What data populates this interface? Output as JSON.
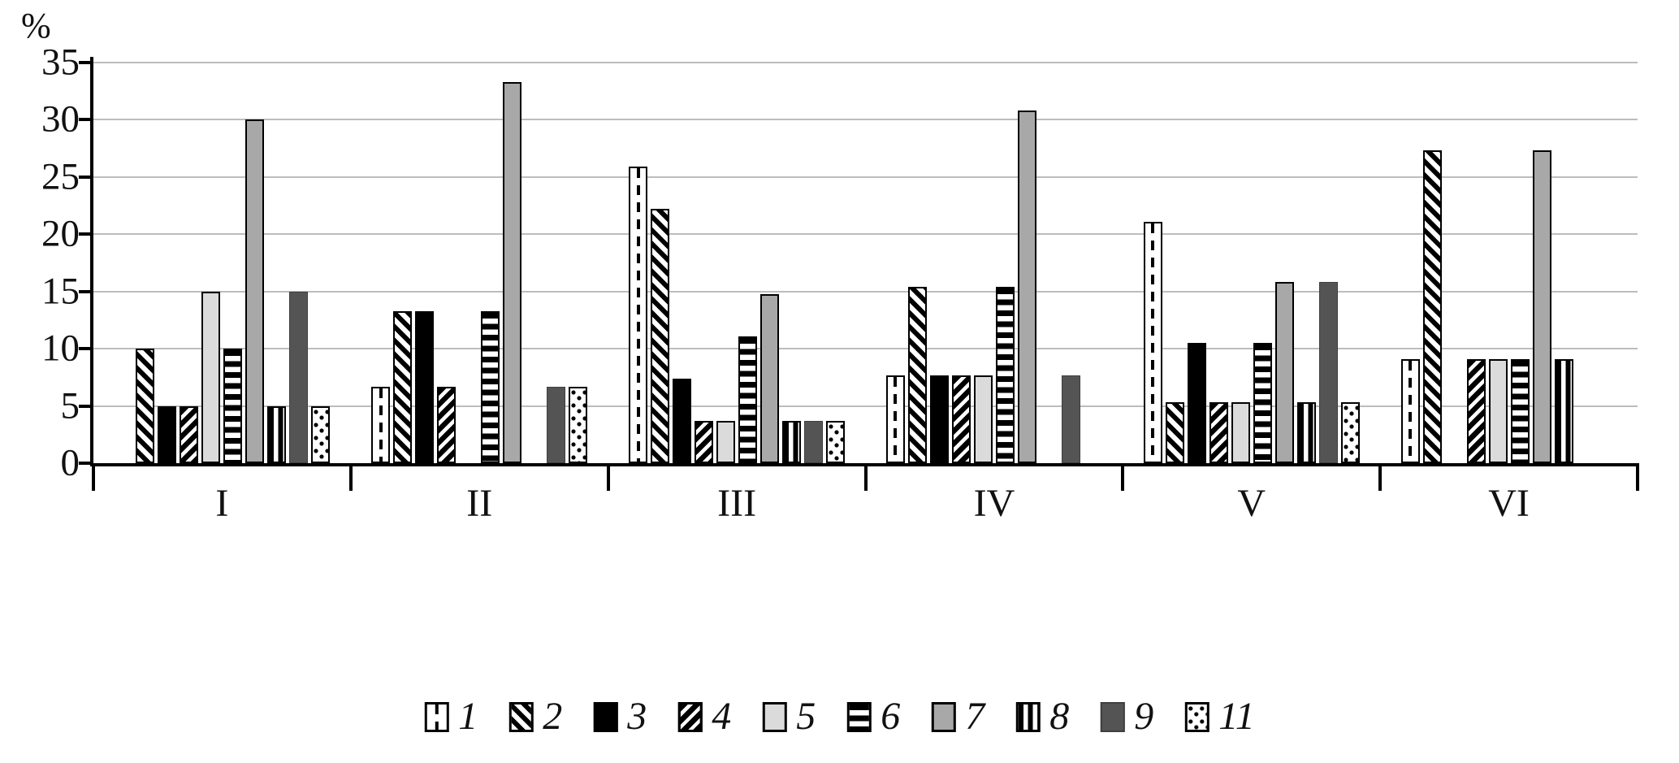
{
  "chart": {
    "percent_label": "%"
  },
  "chart_data": {
    "type": "bar",
    "title": "",
    "ylabel": "%",
    "xlabel": "",
    "ylim": [
      0,
      35
    ],
    "yticks": [
      35,
      30,
      25,
      20,
      15,
      10,
      5,
      0
    ],
    "grid": true,
    "legend_position": "bottom",
    "categories": [
      "I",
      "II",
      "III",
      "IV",
      "V",
      "VI"
    ],
    "series": [
      {
        "name": "1",
        "pattern": "white-dashed-vertical-line",
        "values": [
          0,
          6.7,
          25.9,
          7.7,
          21.1,
          9.1
        ]
      },
      {
        "name": "2",
        "pattern": "diagonal-hatch-down",
        "values": [
          10,
          13.3,
          22.2,
          15.4,
          5.3,
          27.3
        ]
      },
      {
        "name": "3",
        "pattern": "solid-black",
        "values": [
          5,
          13.3,
          7.4,
          7.7,
          10.5,
          0
        ]
      },
      {
        "name": "4",
        "pattern": "diagonal-hatch-up-dense",
        "values": [
          5,
          6.7,
          3.7,
          7.7,
          5.3,
          9.1
        ]
      },
      {
        "name": "5",
        "pattern": "solid-light-gray",
        "values": [
          15,
          0,
          3.7,
          7.7,
          5.3,
          9.1
        ]
      },
      {
        "name": "6",
        "pattern": "horizontal-stripes",
        "values": [
          10,
          13.3,
          11.1,
          15.4,
          10.5,
          9.1
        ]
      },
      {
        "name": "7",
        "pattern": "solid-gray",
        "values": [
          30,
          33.3,
          14.8,
          30.8,
          15.8,
          27.3
        ]
      },
      {
        "name": "8",
        "pattern": "vertical-stripes",
        "values": [
          5,
          0,
          3.7,
          0,
          5.3,
          9.1
        ]
      },
      {
        "name": "9",
        "pattern": "solid-dark-gray",
        "values": [
          15,
          6.7,
          3.7,
          7.7,
          15.8,
          0
        ]
      },
      {
        "name": "11",
        "pattern": "white-dotted",
        "values": [
          5,
          6.7,
          3.7,
          0,
          5.3,
          0
        ]
      }
    ],
    "colors": {
      "black": "#000000",
      "gray": "#a8a8a8",
      "light_gray": "#dbdbdb",
      "dark_gray": "#545454",
      "gridline": "#bdbdbd"
    }
  }
}
